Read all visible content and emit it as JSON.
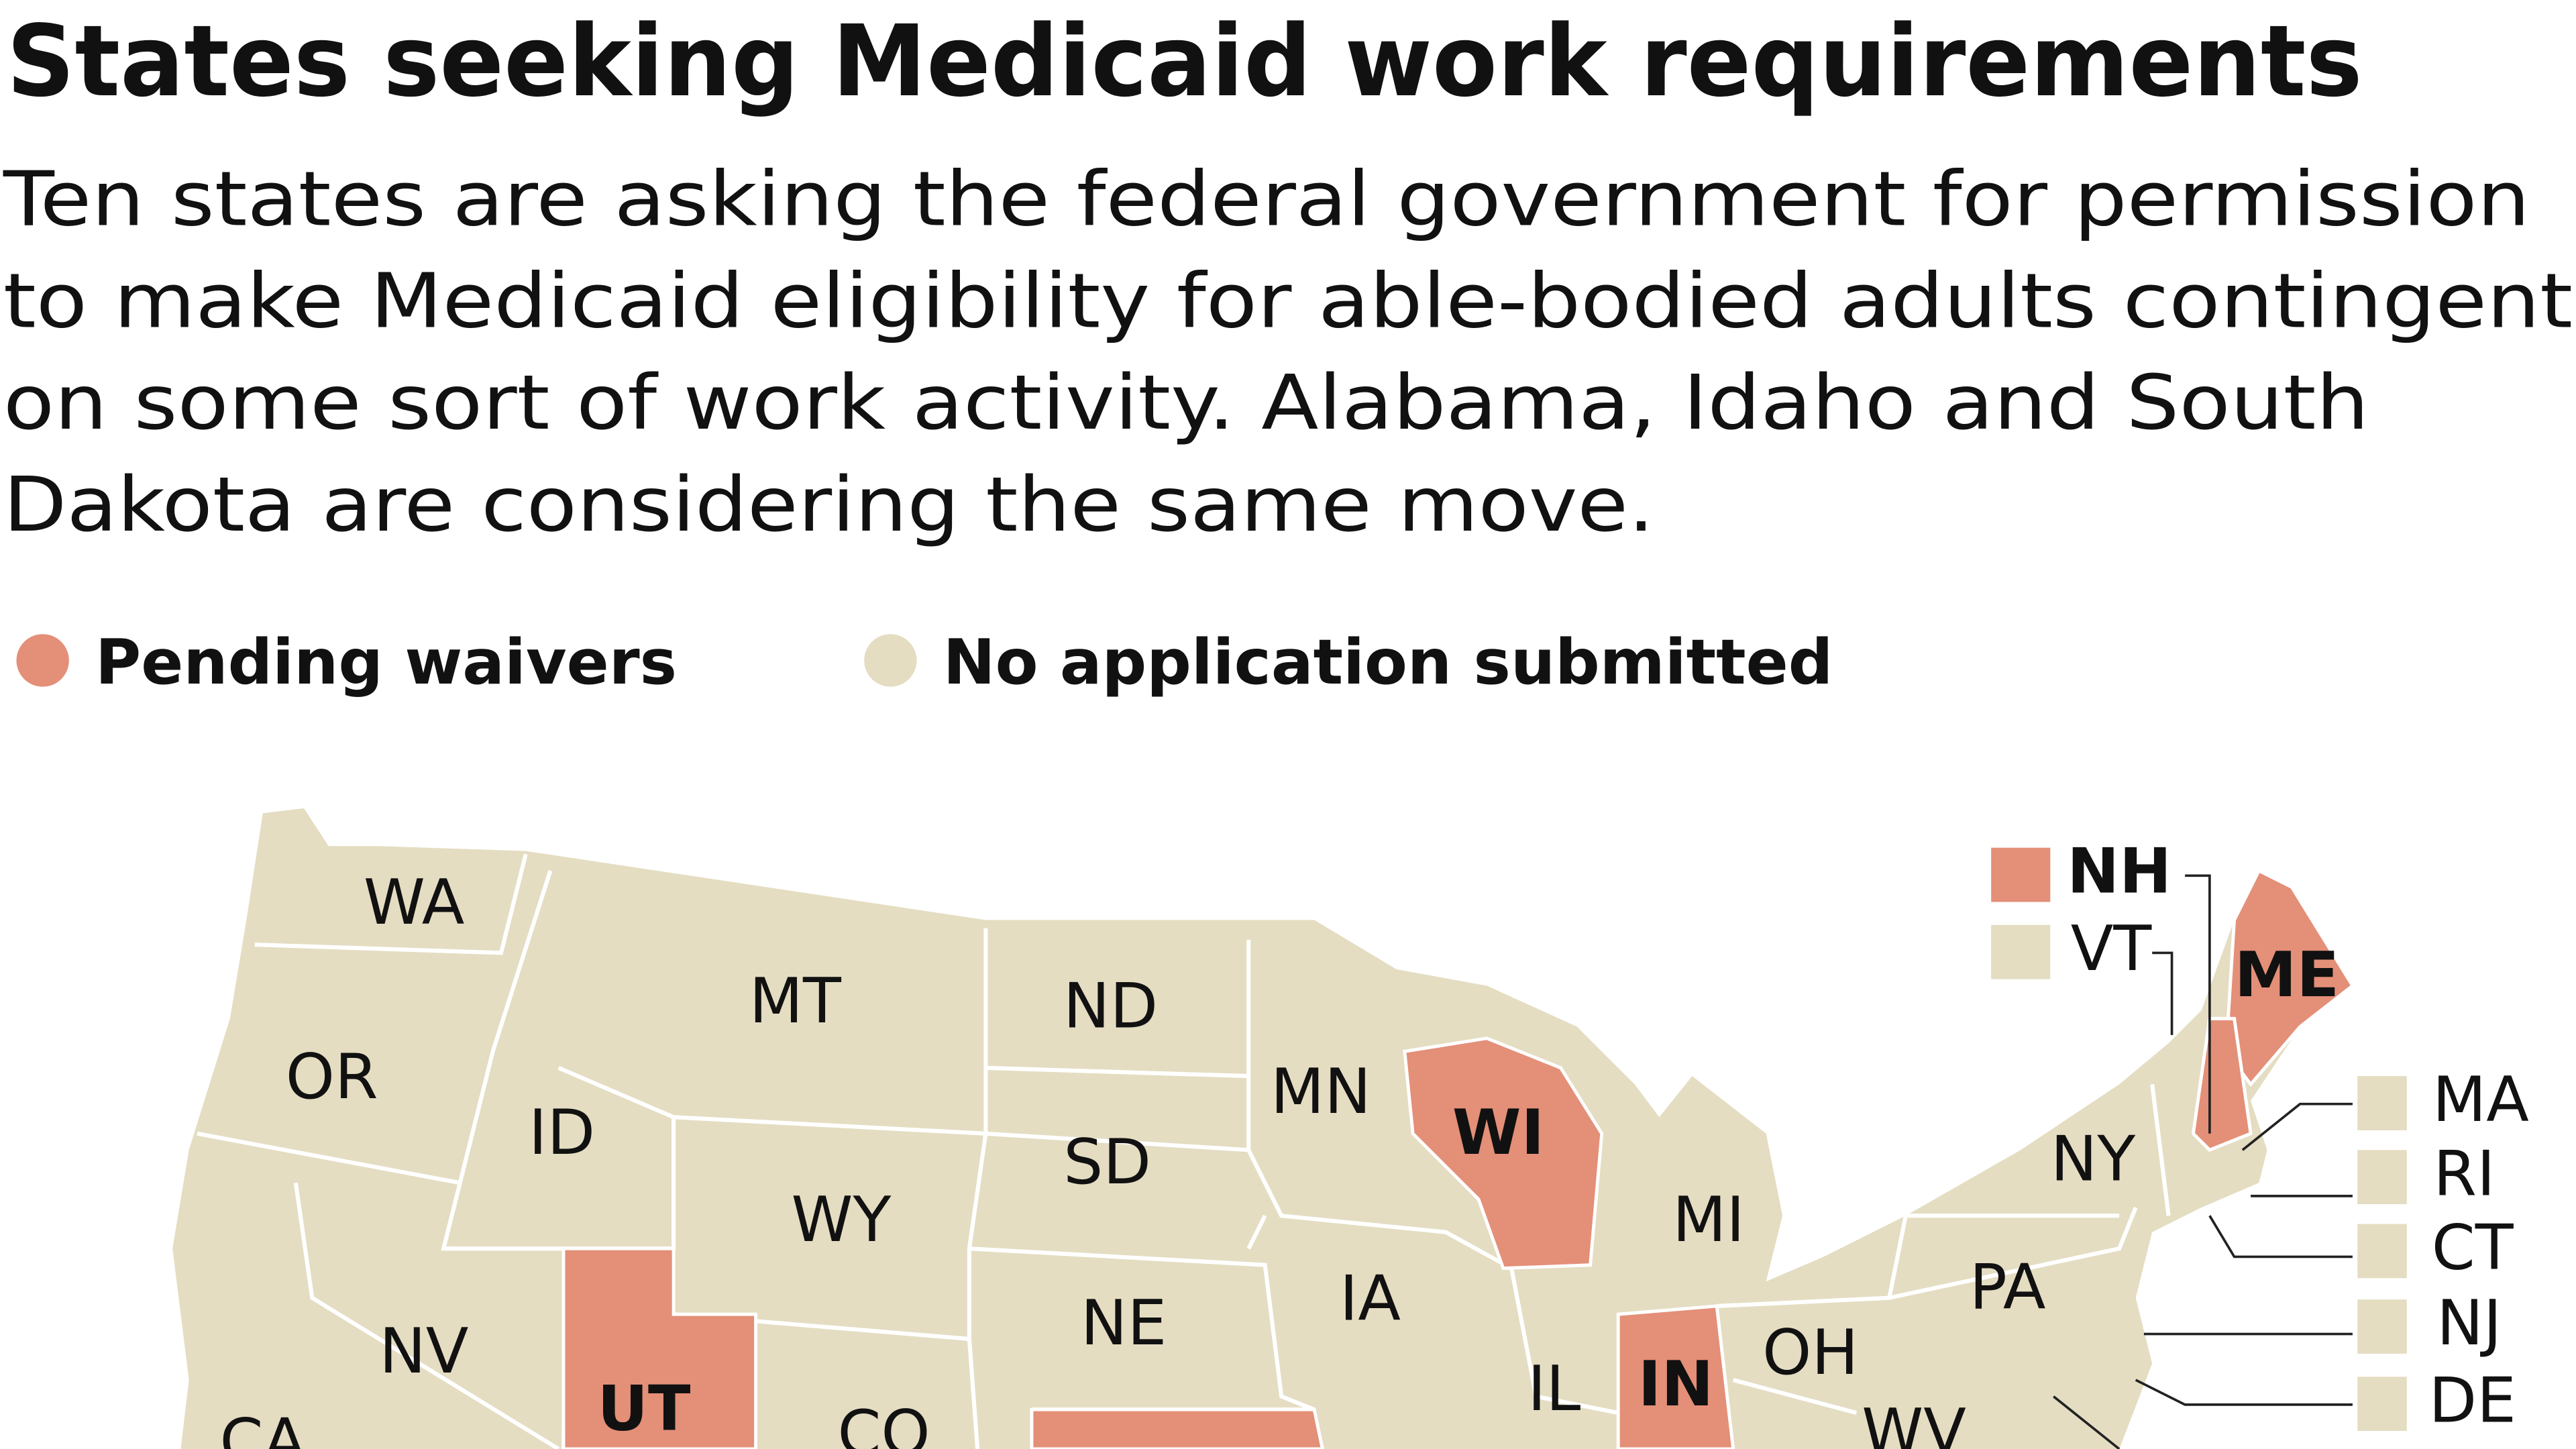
{
  "header": {
    "title": "States seeking Medicaid work requirements",
    "subtitle_lines": [
      "Ten states are asking the federal government for permission",
      "to make Medicaid eligibility for able-bodied adults contingent",
      "on some sort of work activity. Alabama, Idaho and South",
      "Dakota are considering the same move."
    ]
  },
  "legend": [
    {
      "label": "Pending waivers",
      "color": "#e48f78"
    },
    {
      "label": "No application submitted",
      "color": "#e4ddc2"
    }
  ],
  "states": [
    {
      "label": "WA",
      "group": 1
    },
    {
      "label": "OR",
      "group": 1
    },
    {
      "label": "ID",
      "group": 1
    },
    {
      "label": "MT",
      "group": 1
    },
    {
      "label": "ND",
      "group": 1
    },
    {
      "label": "SD",
      "group": 1
    },
    {
      "label": "WY",
      "group": 1
    },
    {
      "label": "MN",
      "group": 1
    },
    {
      "label": "WI",
      "group": 0
    },
    {
      "label": "MI",
      "group": 1
    },
    {
      "label": "IA",
      "group": 1
    },
    {
      "label": "NE",
      "group": 1
    },
    {
      "label": "NV",
      "group": 1
    },
    {
      "label": "UT",
      "group": 0
    },
    {
      "label": "CO",
      "group": 1
    },
    {
      "label": "IL",
      "group": 1
    },
    {
      "label": "IN",
      "group": 0
    },
    {
      "label": "OH",
      "group": 1
    },
    {
      "label": "PA",
      "group": 1
    },
    {
      "label": "NY",
      "group": 1
    },
    {
      "label": "WV",
      "group": 1
    },
    {
      "label": "CA",
      "group": 1
    },
    {
      "label": "ME",
      "group": 0
    },
    {
      "label": "NH",
      "group": 0,
      "inset": true
    },
    {
      "label": "VT",
      "group": 1,
      "inset": true
    },
    {
      "label": "MA",
      "group": 1,
      "inset": true
    },
    {
      "label": "RI",
      "group": 1,
      "inset": true
    },
    {
      "label": "CT",
      "group": 1,
      "inset": true
    },
    {
      "label": "NJ",
      "group": 1,
      "inset": true
    },
    {
      "label": "DE",
      "group": 1,
      "inset": true
    }
  ]
}
